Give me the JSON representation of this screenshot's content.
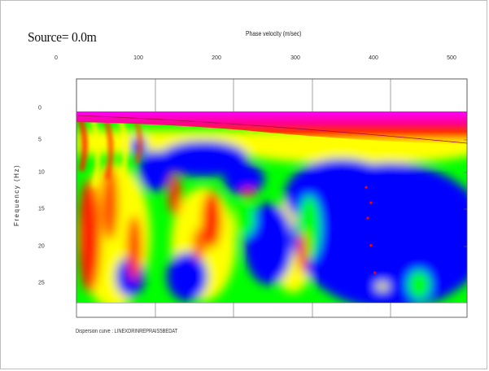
{
  "chart_data": {
    "type": "heatmap",
    "title": "Source= 0.0m",
    "xlabel": "Phase velocity (m/sec)",
    "ylabel": "Frequency (Hz)",
    "xlim": [
      0,
      520
    ],
    "ylim": [
      0,
      30
    ],
    "x_ticks": [
      "0",
      "100",
      "200",
      "300",
      "400",
      "500"
    ],
    "y_ticks": [
      "0",
      "5",
      "10",
      "15",
      "20",
      "25"
    ],
    "grid": true,
    "legend": "none",
    "colormap": [
      "#0000ff",
      "#00ff00",
      "#ffff00",
      "#ff0000",
      "#ff00ff"
    ],
    "dispersion_points": [
      {
        "x": 392,
        "y": 11.3
      },
      {
        "x": 398,
        "y": 13.5
      },
      {
        "x": 394,
        "y": 15.7
      },
      {
        "x": 398,
        "y": 19.6
      },
      {
        "x": 403,
        "y": 23.5
      }
    ],
    "caption": "Dispersion curve : LINEXDRINREPRAIS5BEDAT"
  }
}
